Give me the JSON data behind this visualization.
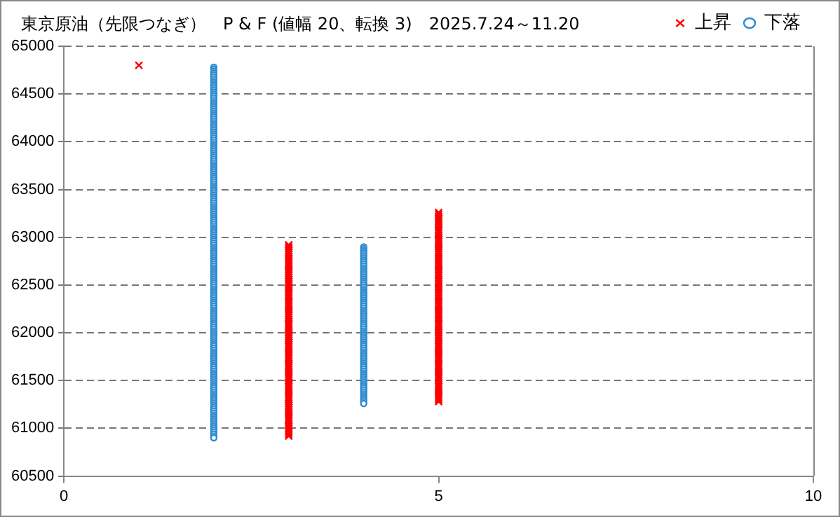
{
  "chart_data": {
    "type": "scatter",
    "title": "東京原油（先限つなぎ）　P & F (値幅 20、転換 3)　2025.7.24～11.20",
    "xlim": [
      0,
      10
    ],
    "xticks": [
      0,
      5,
      10
    ],
    "ylim": [
      60500,
      65000
    ],
    "yticks": [
      60500,
      61000,
      61500,
      62000,
      62500,
      63000,
      63500,
      64000,
      64500,
      65000
    ],
    "grid": "y",
    "legend": "top right",
    "series": [
      {
        "name": "上昇",
        "color": "#ff0000",
        "marker": "cross",
        "x": [
          1,
          3,
          3,
          3,
          3,
          3,
          3,
          3,
          3,
          3,
          3,
          3,
          3,
          3,
          3,
          3,
          3,
          3,
          3,
          3,
          3,
          3,
          3,
          3,
          3,
          3,
          3,
          3,
          3,
          3,
          3,
          3,
          3,
          3,
          3,
          3,
          3,
          3,
          3,
          3,
          3,
          3,
          3,
          3,
          3,
          3,
          3,
          3,
          3,
          3,
          3,
          3,
          3,
          3,
          3,
          3,
          3,
          3,
          3,
          3,
          3,
          3,
          3,
          3,
          3,
          3,
          3,
          3,
          3,
          3,
          3,
          3,
          3,
          3,
          3,
          3,
          3,
          3,
          3,
          3,
          3,
          3,
          3,
          3,
          3,
          3,
          3,
          3,
          3,
          3,
          3,
          3,
          3,
          3,
          3,
          3,
          3,
          3,
          3,
          3,
          3,
          3,
          5,
          5,
          5,
          5,
          5,
          5,
          5,
          5,
          5,
          5,
          5,
          5,
          5,
          5,
          5,
          5,
          5,
          5,
          5,
          5,
          5,
          5,
          5,
          5,
          5,
          5,
          5,
          5,
          5,
          5,
          5,
          5,
          5,
          5,
          5,
          5,
          5,
          5,
          5,
          5,
          5,
          5,
          5,
          5,
          5,
          5,
          5,
          5,
          5,
          5,
          5,
          5,
          5,
          5,
          5,
          5,
          5,
          5,
          5,
          5,
          5,
          5,
          5,
          5,
          5,
          5,
          5,
          5,
          5,
          5,
          5,
          5,
          5,
          5,
          5,
          5,
          5,
          5,
          5,
          5,
          5,
          5,
          5,
          5,
          5,
          5,
          5,
          5,
          5,
          5,
          5,
          5,
          5,
          5,
          5,
          5,
          5,
          5,
          5,
          5
        ],
        "values": [
          64800,
          60920,
          60940,
          60960,
          60980,
          61000,
          61020,
          61040,
          61060,
          61080,
          61100,
          61120,
          61140,
          61160,
          61180,
          61200,
          61220,
          61240,
          61260,
          61280,
          61300,
          61320,
          61340,
          61360,
          61380,
          61400,
          61420,
          61440,
          61460,
          61480,
          61500,
          61520,
          61540,
          61560,
          61580,
          61600,
          61620,
          61640,
          61660,
          61680,
          61700,
          61720,
          61740,
          61760,
          61780,
          61800,
          61820,
          61840,
          61860,
          61880,
          61900,
          61920,
          61940,
          61960,
          61980,
          62000,
          62020,
          62040,
          62060,
          62080,
          62100,
          62120,
          62140,
          62160,
          62180,
          62200,
          62220,
          62240,
          62260,
          62280,
          62300,
          62320,
          62340,
          62360,
          62380,
          62400,
          62420,
          62440,
          62460,
          62480,
          62500,
          62520,
          62540,
          62560,
          62580,
          62600,
          62620,
          62640,
          62660,
          62680,
          62700,
          62720,
          62740,
          62760,
          62780,
          62800,
          62820,
          62840,
          62860,
          62880,
          62900,
          62920,
          61280,
          61300,
          61320,
          61340,
          61360,
          61380,
          61400,
          61420,
          61440,
          61460,
          61480,
          61500,
          61520,
          61540,
          61560,
          61580,
          61600,
          61620,
          61640,
          61660,
          61680,
          61700,
          61720,
          61740,
          61760,
          61780,
          61800,
          61820,
          61840,
          61860,
          61880,
          61900,
          61920,
          61940,
          61960,
          61980,
          62000,
          62020,
          62040,
          62060,
          62080,
          62100,
          62120,
          62140,
          62160,
          62180,
          62200,
          62220,
          62240,
          62260,
          62280,
          62300,
          62320,
          62340,
          62360,
          62380,
          62400,
          62420,
          62440,
          62460,
          62480,
          62500,
          62520,
          62540,
          62560,
          62580,
          62600,
          62620,
          62640,
          62660,
          62680,
          62700,
          62720,
          62740,
          62760,
          62780,
          62800,
          62820,
          62840,
          62860,
          62880,
          62900,
          62920,
          62940,
          62960,
          62980,
          63000,
          63020,
          63040,
          63060,
          63080,
          63100,
          63120,
          63140,
          63160,
          63180,
          63200,
          63220,
          63240,
          63260
        ]
      },
      {
        "name": "下落",
        "color": "#2e8bd0",
        "marker": "circle",
        "x": [
          2,
          2,
          2,
          2,
          2,
          2,
          2,
          2,
          2,
          2,
          2,
          2,
          2,
          2,
          2,
          2,
          2,
          2,
          2,
          2,
          2,
          2,
          2,
          2,
          2,
          2,
          2,
          2,
          2,
          2,
          2,
          2,
          2,
          2,
          2,
          2,
          2,
          2,
          2,
          2,
          2,
          2,
          2,
          2,
          2,
          2,
          2,
          2,
          2,
          2,
          2,
          2,
          2,
          2,
          2,
          2,
          2,
          2,
          2,
          2,
          2,
          2,
          2,
          2,
          2,
          2,
          2,
          2,
          2,
          2,
          2,
          2,
          2,
          2,
          2,
          2,
          2,
          2,
          2,
          2,
          2,
          2,
          2,
          2,
          2,
          2,
          2,
          2,
          2,
          2,
          2,
          2,
          2,
          2,
          2,
          2,
          2,
          2,
          2,
          2,
          2,
          2,
          2,
          2,
          2,
          2,
          2,
          2,
          2,
          2,
          2,
          2,
          2,
          2,
          2,
          2,
          2,
          2,
          2,
          2,
          2,
          2,
          2,
          2,
          2,
          2,
          2,
          2,
          2,
          2,
          2,
          2,
          2,
          2,
          2,
          2,
          2,
          2,
          2,
          2,
          2,
          2,
          2,
          2,
          2,
          2,
          2,
          2,
          2,
          2,
          2,
          2,
          2,
          2,
          2,
          2,
          2,
          2,
          2,
          2,
          2,
          2,
          2,
          2,
          2,
          2,
          2,
          2,
          2,
          2,
          2,
          2,
          2,
          2,
          2,
          2,
          2,
          2,
          2,
          2,
          2,
          2,
          2,
          2,
          2,
          2,
          2,
          2,
          2,
          2,
          2,
          2,
          2,
          2,
          2,
          4,
          4,
          4,
          4,
          4,
          4,
          4,
          4,
          4,
          4,
          4,
          4,
          4,
          4,
          4,
          4,
          4,
          4,
          4,
          4,
          4,
          4,
          4,
          4,
          4,
          4,
          4,
          4,
          4,
          4,
          4,
          4,
          4,
          4,
          4,
          4,
          4,
          4,
          4,
          4,
          4,
          4,
          4,
          4,
          4,
          4,
          4,
          4,
          4,
          4,
          4,
          4,
          4,
          4,
          4,
          4,
          4,
          4,
          4,
          4,
          4,
          4,
          4,
          4,
          4,
          4,
          4,
          4,
          4,
          4,
          4,
          4,
          4,
          4,
          4,
          4,
          4,
          4,
          4,
          4,
          4,
          4,
          4
        ],
        "values": [
          64780,
          64760,
          64740,
          64720,
          64700,
          64680,
          64660,
          64640,
          64620,
          64600,
          64580,
          64560,
          64540,
          64520,
          64500,
          64480,
          64460,
          64440,
          64420,
          64400,
          64380,
          64360,
          64340,
          64320,
          64300,
          64280,
          64260,
          64240,
          64220,
          64200,
          64180,
          64160,
          64140,
          64120,
          64100,
          64080,
          64060,
          64040,
          64020,
          64000,
          63980,
          63960,
          63940,
          63920,
          63900,
          63880,
          63860,
          63840,
          63820,
          63800,
          63780,
          63760,
          63740,
          63720,
          63700,
          63680,
          63660,
          63640,
          63620,
          63600,
          63580,
          63560,
          63540,
          63520,
          63500,
          63480,
          63460,
          63440,
          63420,
          63400,
          63380,
          63360,
          63340,
          63320,
          63300,
          63280,
          63260,
          63240,
          63220,
          63200,
          63180,
          63160,
          63140,
          63120,
          63100,
          63080,
          63060,
          63040,
          63020,
          63000,
          62980,
          62960,
          62940,
          62920,
          62900,
          62880,
          62860,
          62840,
          62820,
          62800,
          62780,
          62760,
          62740,
          62720,
          62700,
          62680,
          62660,
          62640,
          62620,
          62600,
          62580,
          62560,
          62540,
          62520,
          62500,
          62480,
          62460,
          62440,
          62420,
          62400,
          62380,
          62360,
          62340,
          62320,
          62300,
          62280,
          62260,
          62240,
          62220,
          62200,
          62180,
          62160,
          62140,
          62120,
          62100,
          62080,
          62060,
          62040,
          62020,
          62000,
          61980,
          61960,
          61940,
          61920,
          61900,
          61880,
          61860,
          61840,
          61820,
          61800,
          61780,
          61760,
          61740,
          61720,
          61700,
          61680,
          61660,
          61640,
          61620,
          61600,
          61580,
          61560,
          61540,
          61520,
          61500,
          61480,
          61460,
          61440,
          61420,
          61400,
          61380,
          61360,
          61340,
          61320,
          61300,
          61280,
          61260,
          61240,
          61220,
          61200,
          61180,
          61160,
          61140,
          61120,
          61100,
          61080,
          61060,
          61040,
          61020,
          61000,
          60980,
          60960,
          60940,
          60920,
          60900,
          62900,
          62880,
          62860,
          62840,
          62820,
          62800,
          62780,
          62760,
          62740,
          62720,
          62700,
          62680,
          62660,
          62640,
          62620,
          62600,
          62580,
          62560,
          62540,
          62520,
          62500,
          62480,
          62460,
          62440,
          62420,
          62400,
          62380,
          62360,
          62340,
          62320,
          62300,
          62280,
          62260,
          62240,
          62220,
          62200,
          62180,
          62160,
          62140,
          62120,
          62100,
          62080,
          62060,
          62040,
          62020,
          62000,
          61980,
          61960,
          61940,
          61920,
          61900,
          61880,
          61860,
          61840,
          61820,
          61800,
          61780,
          61760,
          61740,
          61720,
          61700,
          61680,
          61660,
          61640,
          61620,
          61600,
          61580,
          61560,
          61540,
          61520,
          61500,
          61480,
          61460,
          61440,
          61420,
          61400,
          61380,
          61360,
          61340,
          61320,
          61300,
          61280,
          61260
        ]
      }
    ]
  }
}
